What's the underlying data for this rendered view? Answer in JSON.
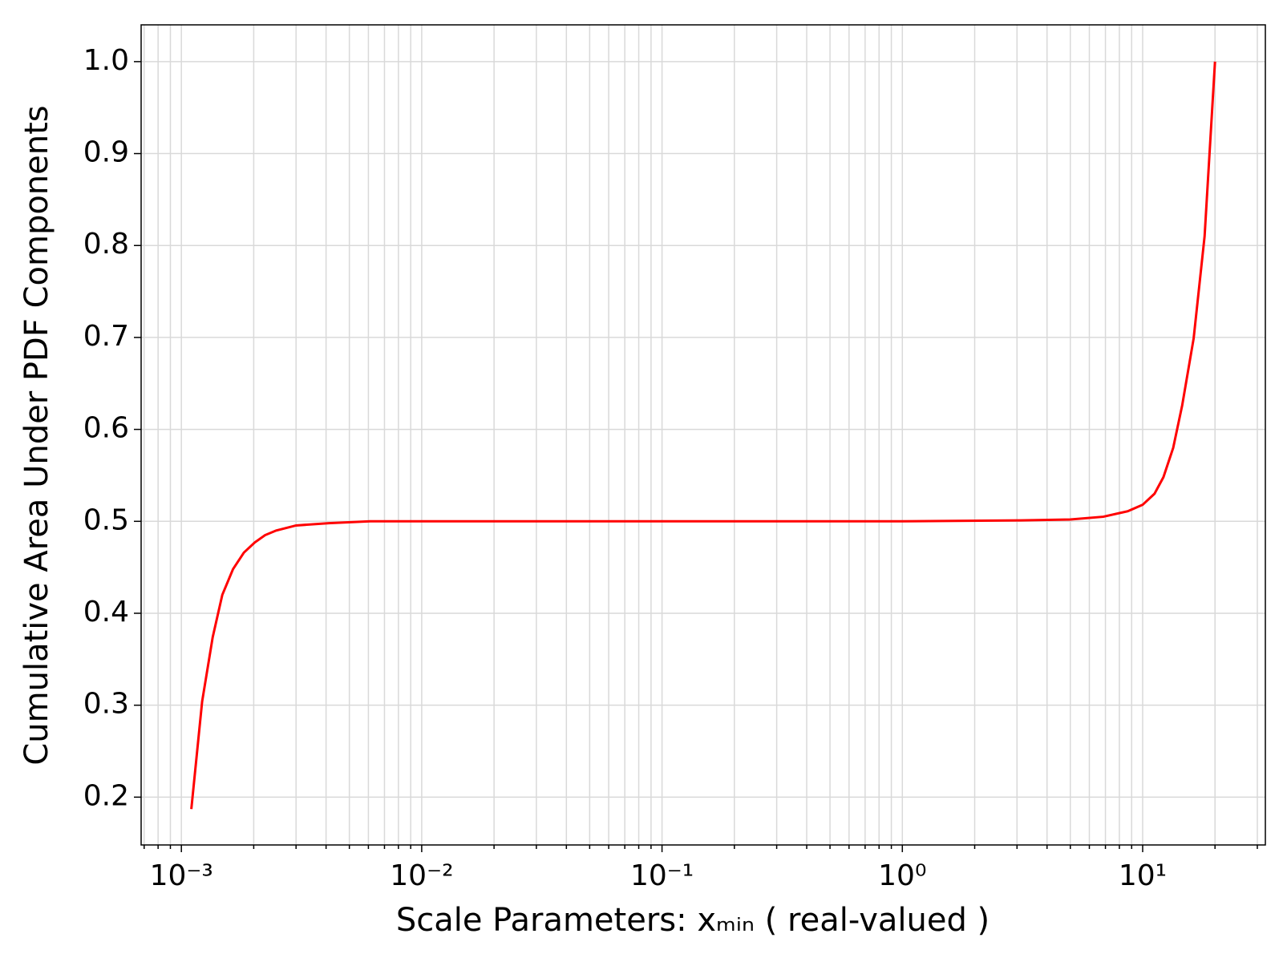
{
  "chart_data": {
    "type": "line",
    "xlabel": "Scale Parameters: xₘᵢₙ ( real-valued )",
    "ylabel": "Cumulative Area Under PDF Components",
    "xscale": "log",
    "grid": true,
    "minor_grid": true,
    "xlim": [
      0.00068,
      32.4
    ],
    "ylim": [
      0.148,
      1.04
    ],
    "xticks": [
      {
        "value": 0.001,
        "label": "10⁻³"
      },
      {
        "value": 0.01,
        "label": "10⁻²"
      },
      {
        "value": 0.1,
        "label": "10⁻¹"
      },
      {
        "value": 1,
        "label": "10⁰"
      },
      {
        "value": 10,
        "label": "10¹"
      }
    ],
    "yticks": [
      0.2,
      0.3,
      0.4,
      0.5,
      0.6,
      0.7,
      0.8,
      0.9,
      {
        "value": 1,
        "label": "1.0"
      }
    ],
    "series": [
      {
        "color": "#ff0000",
        "x": [
          0.0011,
          0.00122,
          0.00135,
          0.00148,
          0.00164,
          0.00182,
          0.00202,
          0.00223,
          0.00248,
          0.003,
          0.0041,
          0.0061,
          0.009,
          0.03,
          0.1,
          0.3,
          1,
          3.11,
          5.0,
          6.86,
          8.67,
          10,
          11.2,
          12.2,
          13.4,
          14.6,
          16.3,
          18.1,
          20.0
        ],
        "values": [
          0.187,
          0.304,
          0.374,
          0.42,
          0.448,
          0.466,
          0.477,
          0.485,
          0.49,
          0.4955,
          0.498,
          0.5,
          0.5,
          0.5,
          0.5,
          0.5,
          0.5,
          0.501,
          0.502,
          0.505,
          0.511,
          0.518,
          0.53,
          0.548,
          0.58,
          0.626,
          0.699,
          0.81,
          1.0
        ]
      }
    ]
  }
}
